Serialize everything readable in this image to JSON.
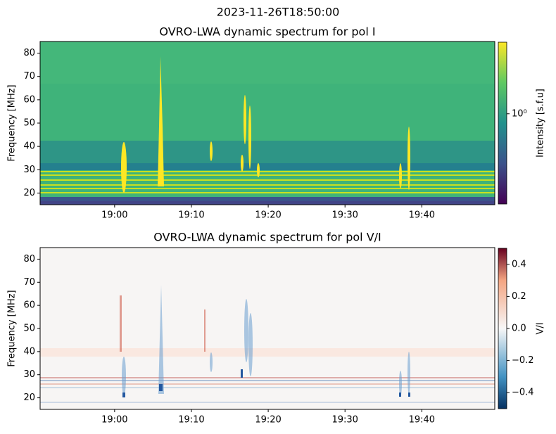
{
  "title": "2023-11-26T18:50:00",
  "chart_data": [
    {
      "type": "heatmap",
      "title": "OVRO-LWA dynamic spectrum for pol I",
      "ylabel": "Frequency [MHz]",
      "xlim": [
        1130.3,
        1189.5
      ],
      "xticks": [
        {
          "value": 1140,
          "label": "19:00"
        },
        {
          "value": 1150,
          "label": "19:10"
        },
        {
          "value": 1160,
          "label": "19:20"
        },
        {
          "value": 1170,
          "label": "19:30"
        },
        {
          "value": 1180,
          "label": "19:40"
        }
      ],
      "ylim": [
        15,
        85
      ],
      "yticks": [
        20,
        30,
        40,
        50,
        60,
        70,
        80
      ],
      "colormap": "viridis",
      "colorbar_label": "Intensity [s.f.u]",
      "colorbar_log": true,
      "clim": [
        0.3,
        2.6
      ],
      "colorbar_ticks": [
        {
          "value": 1,
          "label": "10⁰"
        }
      ]
    },
    {
      "type": "heatmap",
      "title": "OVRO-LWA dynamic spectrum for pol V/I",
      "ylabel": "Frequency [MHz]",
      "xlim": [
        1130.3,
        1189.5
      ],
      "xticks": [
        {
          "value": 1140,
          "label": "19:00"
        },
        {
          "value": 1150,
          "label": "19:10"
        },
        {
          "value": 1160,
          "label": "19:20"
        },
        {
          "value": 1170,
          "label": "19:30"
        },
        {
          "value": 1180,
          "label": "19:40"
        }
      ],
      "ylim": [
        15,
        85
      ],
      "yticks": [
        20,
        30,
        40,
        50,
        60,
        70,
        80
      ],
      "colormap": "RdBu_r",
      "colorbar_label": "V/I",
      "colorbar_log": false,
      "clim": [
        -0.5,
        0.5
      ],
      "colorbar_ticks": [
        {
          "value": -0.4,
          "label": "−0.4"
        },
        {
          "value": -0.2,
          "label": "−0.2"
        },
        {
          "value": 0,
          "label": "0.0"
        },
        0.2,
        0.4
      ]
    }
  ]
}
